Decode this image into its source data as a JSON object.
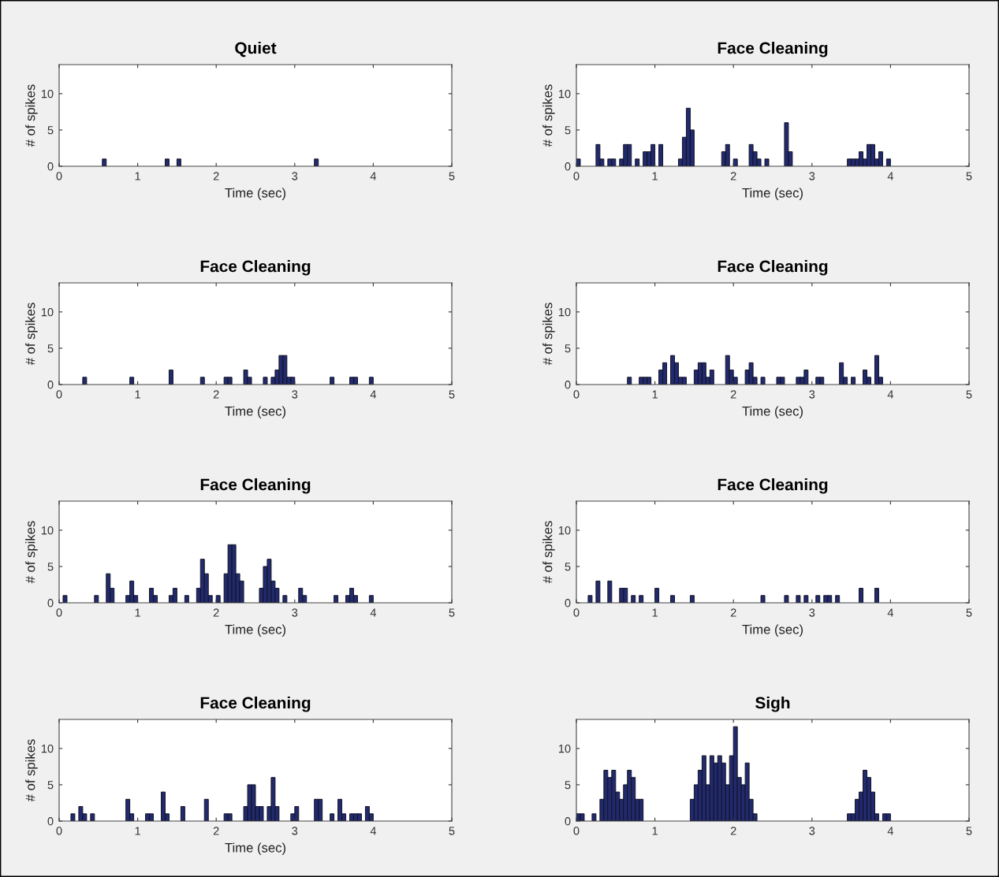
{
  "chart_data": [
    {
      "type": "histogram",
      "title": "Quiet",
      "xlabel": "Time (sec)",
      "ylabel": "# of spikes",
      "color": "#222a6e",
      "xlim": [
        0,
        5
      ],
      "xticks": [
        0,
        1,
        2,
        3,
        4,
        5
      ],
      "ylim": [
        0,
        14
      ],
      "yticks": [
        0,
        5,
        10
      ],
      "grid": false,
      "bins": [
        0,
        0.05,
        0.1,
        0.15,
        0.2,
        0.25,
        0.3,
        0.35,
        0.4,
        0.45,
        0.5,
        0.55,
        0.6,
        0.65,
        0.7,
        0.75,
        0.8,
        0.85,
        0.9,
        0.95,
        1,
        1.05,
        1.1,
        1.15,
        1.2,
        1.25,
        1.3,
        1.35,
        1.4,
        1.45,
        1.5,
        1.55,
        1.6,
        1.65,
        1.7,
        1.75,
        1.8,
        1.85,
        1.9,
        1.95,
        2,
        2.05,
        2.1,
        2.15,
        2.2,
        2.25,
        2.3,
        2.35,
        2.4,
        2.45,
        2.5,
        2.55,
        2.6,
        2.65,
        2.7,
        2.75,
        2.8,
        2.85,
        2.9,
        2.95,
        3,
        3.05,
        3.1,
        3.15,
        3.2,
        3.25,
        3.3,
        3.35,
        3.4,
        3.45,
        3.5,
        3.55,
        3.6,
        3.65,
        3.7,
        3.75,
        3.8,
        3.85,
        3.9,
        3.95,
        4
      ],
      "values": [
        0,
        0,
        0,
        0,
        0,
        0,
        0,
        0,
        0,
        0,
        0,
        1,
        0,
        0,
        0,
        0,
        0,
        0,
        0,
        0,
        0,
        0,
        0,
        0,
        0,
        0,
        0,
        1,
        0,
        0,
        1,
        0,
        0,
        0,
        0,
        0,
        0,
        0,
        0,
        0,
        0,
        0,
        0,
        0,
        0,
        0,
        0,
        0,
        0,
        0,
        0,
        0,
        0,
        0,
        0,
        0,
        0,
        0,
        0,
        0,
        0,
        0,
        0,
        0,
        0,
        1,
        0,
        0,
        0,
        0,
        0,
        0,
        0,
        0,
        0,
        0,
        0,
        0,
        0,
        0
      ]
    },
    {
      "type": "histogram",
      "title": "Face Cleaning",
      "xlabel": "Time (sec)",
      "ylabel": "# of spikes",
      "color": "#222a6e",
      "xlim": [
        0,
        5
      ],
      "xticks": [
        0,
        1,
        2,
        3,
        4,
        5
      ],
      "ylim": [
        0,
        14
      ],
      "yticks": [
        0,
        5,
        10
      ],
      "grid": false,
      "bins": [
        0,
        0.05,
        0.1,
        0.15,
        0.2,
        0.25,
        0.3,
        0.35,
        0.4,
        0.45,
        0.5,
        0.55,
        0.6,
        0.65,
        0.7,
        0.75,
        0.8,
        0.85,
        0.9,
        0.95,
        1,
        1.05,
        1.1,
        1.15,
        1.2,
        1.25,
        1.3,
        1.35,
        1.4,
        1.45,
        1.5,
        1.55,
        1.6,
        1.65,
        1.7,
        1.75,
        1.8,
        1.85,
        1.9,
        1.95,
        2,
        2.05,
        2.1,
        2.15,
        2.2,
        2.25,
        2.3,
        2.35,
        2.4,
        2.45,
        2.5,
        2.55,
        2.6,
        2.65,
        2.7,
        2.75,
        2.8,
        2.85,
        2.9,
        2.95,
        3,
        3.05,
        3.1,
        3.15,
        3.2,
        3.25,
        3.3,
        3.35,
        3.4,
        3.45,
        3.5,
        3.55,
        3.6,
        3.65,
        3.7,
        3.75,
        3.8,
        3.85,
        3.9,
        3.95,
        4
      ],
      "values": [
        1,
        0,
        0,
        0,
        0,
        3,
        1,
        0,
        1,
        1,
        0,
        1,
        3,
        3,
        0,
        1,
        0,
        2,
        2,
        3,
        0,
        3,
        0,
        0,
        0,
        0,
        1,
        4,
        8,
        5,
        0,
        0,
        0,
        0,
        0,
        0,
        0,
        2,
        3,
        0,
        1,
        0,
        0,
        0,
        3,
        2,
        1,
        0,
        1,
        0,
        0,
        0,
        0,
        6,
        2,
        0,
        0,
        0,
        0,
        0,
        0,
        0,
        0,
        0,
        0,
        0,
        0,
        0,
        0,
        1,
        1,
        1,
        2,
        1,
        3,
        3,
        1,
        2,
        0,
        1
      ]
    },
    {
      "type": "histogram",
      "title": "Face Cleaning",
      "xlabel": "Time (sec)",
      "ylabel": "# of spikes",
      "color": "#222a6e",
      "xlim": [
        0,
        5
      ],
      "xticks": [
        0,
        1,
        2,
        3,
        4,
        5
      ],
      "ylim": [
        0,
        14
      ],
      "yticks": [
        0,
        5,
        10
      ],
      "grid": false,
      "bins": [
        0,
        0.05,
        0.1,
        0.15,
        0.2,
        0.25,
        0.3,
        0.35,
        0.4,
        0.45,
        0.5,
        0.55,
        0.6,
        0.65,
        0.7,
        0.75,
        0.8,
        0.85,
        0.9,
        0.95,
        1,
        1.05,
        1.1,
        1.15,
        1.2,
        1.25,
        1.3,
        1.35,
        1.4,
        1.45,
        1.5,
        1.55,
        1.6,
        1.65,
        1.7,
        1.75,
        1.8,
        1.85,
        1.9,
        1.95,
        2,
        2.05,
        2.1,
        2.15,
        2.2,
        2.25,
        2.3,
        2.35,
        2.4,
        2.45,
        2.5,
        2.55,
        2.6,
        2.65,
        2.7,
        2.75,
        2.8,
        2.85,
        2.9,
        2.95,
        3,
        3.05,
        3.1,
        3.15,
        3.2,
        3.25,
        3.3,
        3.35,
        3.4,
        3.45,
        3.5,
        3.55,
        3.6,
        3.65,
        3.7,
        3.75,
        3.8,
        3.85,
        3.9,
        3.95,
        4
      ],
      "values": [
        0,
        0,
        0,
        0,
        0,
        0,
        1,
        0,
        0,
        0,
        0,
        0,
        0,
        0,
        0,
        0,
        0,
        0,
        1,
        0,
        0,
        0,
        0,
        0,
        0,
        0,
        0,
        0,
        2,
        0,
        0,
        0,
        0,
        0,
        0,
        0,
        1,
        0,
        0,
        0,
        0,
        0,
        1,
        1,
        0,
        0,
        0,
        2,
        1,
        0,
        0,
        0,
        1,
        0,
        1,
        2,
        4,
        4,
        1,
        1,
        0,
        0,
        0,
        0,
        0,
        0,
        0,
        0,
        0,
        1,
        0,
        0,
        0,
        0,
        1,
        1,
        0,
        0,
        0,
        1
      ]
    },
    {
      "type": "histogram",
      "title": "Face Cleaning",
      "xlabel": "Time (sec)",
      "ylabel": "# of spikes",
      "color": "#222a6e",
      "xlim": [
        0,
        5
      ],
      "xticks": [
        0,
        1,
        2,
        3,
        4,
        5
      ],
      "ylim": [
        0,
        14
      ],
      "yticks": [
        0,
        5,
        10
      ],
      "grid": false,
      "bins": [
        0,
        0.05,
        0.1,
        0.15,
        0.2,
        0.25,
        0.3,
        0.35,
        0.4,
        0.45,
        0.5,
        0.55,
        0.6,
        0.65,
        0.7,
        0.75,
        0.8,
        0.85,
        0.9,
        0.95,
        1,
        1.05,
        1.1,
        1.15,
        1.2,
        1.25,
        1.3,
        1.35,
        1.4,
        1.45,
        1.5,
        1.55,
        1.6,
        1.65,
        1.7,
        1.75,
        1.8,
        1.85,
        1.9,
        1.95,
        2,
        2.05,
        2.1,
        2.15,
        2.2,
        2.25,
        2.3,
        2.35,
        2.4,
        2.45,
        2.5,
        2.55,
        2.6,
        2.65,
        2.7,
        2.75,
        2.8,
        2.85,
        2.9,
        2.95,
        3,
        3.05,
        3.1,
        3.15,
        3.2,
        3.25,
        3.3,
        3.35,
        3.4,
        3.45,
        3.5,
        3.55,
        3.6,
        3.65,
        3.7,
        3.75,
        3.8,
        3.85,
        3.9,
        3.95,
        4
      ],
      "values": [
        0,
        0,
        0,
        0,
        0,
        0,
        0,
        0,
        0,
        0,
        0,
        0,
        0,
        1,
        0,
        0,
        1,
        1,
        1,
        0,
        0,
        2,
        3,
        0,
        4,
        3,
        1,
        1,
        0,
        0,
        2,
        3,
        3,
        1,
        2,
        0,
        0,
        0,
        4,
        2,
        1,
        0,
        0,
        2,
        3,
        1,
        0,
        1,
        0,
        0,
        0,
        1,
        1,
        0,
        0,
        0,
        1,
        1,
        2,
        0,
        0,
        1,
        1,
        0,
        0,
        0,
        0,
        3,
        1,
        0,
        1,
        0,
        0,
        2,
        1,
        0,
        4,
        1,
        0,
        0
      ]
    },
    {
      "type": "histogram",
      "title": "Face Cleaning",
      "xlabel": "Time (sec)",
      "ylabel": "# of spikes",
      "color": "#222a6e",
      "xlim": [
        0,
        5
      ],
      "xticks": [
        0,
        1,
        2,
        3,
        4,
        5
      ],
      "ylim": [
        0,
        14
      ],
      "yticks": [
        0,
        5,
        10
      ],
      "grid": false,
      "bins": [
        0,
        0.05,
        0.1,
        0.15,
        0.2,
        0.25,
        0.3,
        0.35,
        0.4,
        0.45,
        0.5,
        0.55,
        0.6,
        0.65,
        0.7,
        0.75,
        0.8,
        0.85,
        0.9,
        0.95,
        1,
        1.05,
        1.1,
        1.15,
        1.2,
        1.25,
        1.3,
        1.35,
        1.4,
        1.45,
        1.5,
        1.55,
        1.6,
        1.65,
        1.7,
        1.75,
        1.8,
        1.85,
        1.9,
        1.95,
        2,
        2.05,
        2.1,
        2.15,
        2.2,
        2.25,
        2.3,
        2.35,
        2.4,
        2.45,
        2.5,
        2.55,
        2.6,
        2.65,
        2.7,
        2.75,
        2.8,
        2.85,
        2.9,
        2.95,
        3,
        3.05,
        3.1,
        3.15,
        3.2,
        3.25,
        3.3,
        3.35,
        3.4,
        3.45,
        3.5,
        3.55,
        3.6,
        3.65,
        3.7,
        3.75,
        3.8,
        3.85,
        3.9,
        3.95,
        4
      ],
      "values": [
        0,
        1,
        0,
        0,
        0,
        0,
        0,
        0,
        0,
        1,
        0,
        0,
        4,
        2,
        0,
        0,
        0,
        1,
        3,
        1,
        0,
        0,
        0,
        2,
        1,
        0,
        0,
        0,
        1,
        2,
        0,
        0,
        1,
        0,
        0,
        2,
        6,
        4,
        1,
        0,
        1,
        0,
        4,
        8,
        8,
        4,
        3,
        0,
        0,
        0,
        0,
        2,
        5,
        6,
        3,
        2,
        0,
        1,
        0,
        0,
        0,
        2,
        1,
        0,
        0,
        0,
        0,
        0,
        0,
        0,
        1,
        0,
        0,
        1,
        2,
        1,
        0,
        0,
        0,
        1
      ]
    },
    {
      "type": "histogram",
      "title": "Face Cleaning",
      "xlabel": "Time (sec)",
      "ylabel": "# of spikes",
      "color": "#222a6e",
      "xlim": [
        0,
        5
      ],
      "xticks": [
        0,
        1,
        2,
        3,
        4,
        5
      ],
      "ylim": [
        0,
        14
      ],
      "yticks": [
        0,
        5,
        10
      ],
      "grid": false,
      "bins": [
        0,
        0.05,
        0.1,
        0.15,
        0.2,
        0.25,
        0.3,
        0.35,
        0.4,
        0.45,
        0.5,
        0.55,
        0.6,
        0.65,
        0.7,
        0.75,
        0.8,
        0.85,
        0.9,
        0.95,
        1,
        1.05,
        1.1,
        1.15,
        1.2,
        1.25,
        1.3,
        1.35,
        1.4,
        1.45,
        1.5,
        1.55,
        1.6,
        1.65,
        1.7,
        1.75,
        1.8,
        1.85,
        1.9,
        1.95,
        2,
        2.05,
        2.1,
        2.15,
        2.2,
        2.25,
        2.3,
        2.35,
        2.4,
        2.45,
        2.5,
        2.55,
        2.6,
        2.65,
        2.7,
        2.75,
        2.8,
        2.85,
        2.9,
        2.95,
        3,
        3.05,
        3.1,
        3.15,
        3.2,
        3.25,
        3.3,
        3.35,
        3.4,
        3.45,
        3.5,
        3.55,
        3.6,
        3.65,
        3.7,
        3.75,
        3.8,
        3.85,
        3.9,
        3.95,
        4
      ],
      "values": [
        0,
        0,
        0,
        1,
        0,
        3,
        0,
        0,
        3,
        0,
        0,
        2,
        2,
        0,
        1,
        0,
        1,
        0,
        0,
        0,
        2,
        0,
        0,
        0,
        1,
        0,
        0,
        0,
        0,
        1,
        0,
        0,
        0,
        0,
        0,
        0,
        0,
        0,
        0,
        0,
        0,
        0,
        0,
        0,
        0,
        0,
        0,
        1,
        0,
        0,
        0,
        0,
        0,
        1,
        0,
        0,
        1,
        0,
        1,
        0,
        0,
        1,
        0,
        1,
        1,
        0,
        1,
        0,
        0,
        0,
        0,
        0,
        2,
        0,
        0,
        0,
        2,
        0,
        0,
        0
      ]
    },
    {
      "type": "histogram",
      "title": "Face Cleaning",
      "xlabel": "Time (sec)",
      "ylabel": "# of spikes",
      "color": "#222a6e",
      "xlim": [
        0,
        5
      ],
      "xticks": [
        0,
        1,
        2,
        3,
        4,
        5
      ],
      "ylim": [
        0,
        14
      ],
      "yticks": [
        0,
        5,
        10
      ],
      "grid": false,
      "bins": [
        0,
        0.05,
        0.1,
        0.15,
        0.2,
        0.25,
        0.3,
        0.35,
        0.4,
        0.45,
        0.5,
        0.55,
        0.6,
        0.65,
        0.7,
        0.75,
        0.8,
        0.85,
        0.9,
        0.95,
        1,
        1.05,
        1.1,
        1.15,
        1.2,
        1.25,
        1.3,
        1.35,
        1.4,
        1.45,
        1.5,
        1.55,
        1.6,
        1.65,
        1.7,
        1.75,
        1.8,
        1.85,
        1.9,
        1.95,
        2,
        2.05,
        2.1,
        2.15,
        2.2,
        2.25,
        2.3,
        2.35,
        2.4,
        2.45,
        2.5,
        2.55,
        2.6,
        2.65,
        2.7,
        2.75,
        2.8,
        2.85,
        2.9,
        2.95,
        3,
        3.05,
        3.1,
        3.15,
        3.2,
        3.25,
        3.3,
        3.35,
        3.4,
        3.45,
        3.5,
        3.55,
        3.6,
        3.65,
        3.7,
        3.75,
        3.8,
        3.85,
        3.9,
        3.95,
        4
      ],
      "values": [
        0,
        0,
        0,
        1,
        0,
        2,
        1,
        0,
        1,
        0,
        0,
        0,
        0,
        0,
        0,
        0,
        0,
        3,
        1,
        0,
        0,
        0,
        1,
        1,
        0,
        0,
        4,
        1,
        0,
        0,
        0,
        2,
        0,
        0,
        0,
        0,
        0,
        3,
        0,
        0,
        0,
        0,
        1,
        1,
        0,
        0,
        0,
        2,
        5,
        5,
        2,
        2,
        0,
        2,
        6,
        2,
        0,
        0,
        0,
        1,
        2,
        0,
        0,
        0,
        0,
        3,
        3,
        0,
        0,
        1,
        0,
        3,
        1,
        0,
        1,
        1,
        1,
        0,
        2,
        1
      ]
    },
    {
      "type": "histogram",
      "title": "Sigh",
      "color": "#222a6e",
      "xlim": [
        0,
        5
      ],
      "xticks": [
        0,
        1,
        2,
        3,
        4,
        5
      ],
      "ylim": [
        0,
        14
      ],
      "yticks": [
        0,
        5,
        10
      ],
      "grid": false,
      "bins": [
        0,
        0.05,
        0.1,
        0.15,
        0.2,
        0.25,
        0.3,
        0.35,
        0.4,
        0.45,
        0.5,
        0.55,
        0.6,
        0.65,
        0.7,
        0.75,
        0.8,
        0.85,
        0.9,
        0.95,
        1,
        1.05,
        1.1,
        1.15,
        1.2,
        1.25,
        1.3,
        1.35,
        1.4,
        1.45,
        1.5,
        1.55,
        1.6,
        1.65,
        1.7,
        1.75,
        1.8,
        1.85,
        1.9,
        1.95,
        2,
        2.05,
        2.1,
        2.15,
        2.2,
        2.25,
        2.3,
        2.35,
        2.4,
        2.45,
        2.5,
        2.55,
        2.6,
        2.65,
        2.7,
        2.75,
        2.8,
        2.85,
        2.9,
        2.95,
        3,
        3.05,
        3.1,
        3.15,
        3.2,
        3.25,
        3.3,
        3.35,
        3.4,
        3.45,
        3.5,
        3.55,
        3.6,
        3.65,
        3.7,
        3.75,
        3.8,
        3.85,
        3.9,
        3.95,
        4
      ],
      "values": [
        1,
        1,
        0,
        0,
        1,
        0,
        3,
        7,
        6,
        7,
        4,
        3,
        5,
        7,
        6,
        3,
        3,
        0,
        0,
        0,
        0,
        0,
        0,
        0,
        0,
        0,
        0,
        0,
        0,
        3,
        5,
        7,
        9,
        5,
        9,
        8,
        9,
        8,
        5,
        9,
        13,
        6,
        5,
        8,
        3,
        1,
        0,
        0,
        0,
        0,
        0,
        0,
        0,
        0,
        0,
        0,
        0,
        0,
        0,
        0,
        0,
        0,
        0,
        0,
        0,
        0,
        0,
        0,
        0,
        1,
        1,
        3,
        4,
        7,
        6,
        4,
        1,
        0,
        1,
        1
      ]
    }
  ]
}
